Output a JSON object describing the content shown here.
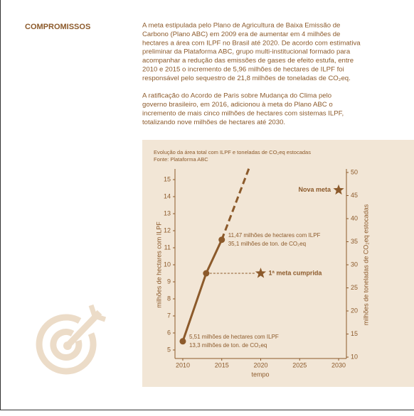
{
  "heading": "COMPROMISSOS",
  "paragraphs": [
    [
      "A meta estipulada pelo Plano de Agricultura de Baixa Emissão de",
      "Carbono (Plano ABC) em 2009 era de aumentar em 4 milhões de",
      "hectares a área com ILPF no Brasil até 2020. De acordo com estimativa",
      "preliminar da Plataforma ABC, grupo multi-institucional formado para",
      "acompanhar a redução das emissões de gases de efeito estufa, entre",
      "2010 e 2015 o incremento de 5,96 milhões de hectares de ILPF foi",
      "responsável pelo sequestro de 21,8 milhões de toneladas de CO₂eq."
    ],
    [
      "A ratificação do Acordo de Paris sobre Mudança do Clima pelo",
      "governo brasileiro, em 2016, adicionou à meta do Plano ABC o",
      "incremento de mais cinco milhões de hectares com sistemas ILPF,",
      "totalizando nove milhões de hectares até 2030."
    ]
  ],
  "chart_data": {
    "type": "line",
    "title": "Evolução da área total com ILPF e toneladas de CO₂eq estocadas",
    "subtitle": "Fonte: Plataforma ABC",
    "x_label": "tempo",
    "y_label": "milhões de hectares com ILPF",
    "y2_label": "milhões de toneladas de CO₂eq estocadas",
    "xlim": [
      2009,
      2031
    ],
    "xticks": [
      2010,
      2015,
      2020,
      2025,
      2030
    ],
    "ylim": [
      4.5,
      15.5
    ],
    "yticks": [
      5,
      6,
      7,
      8,
      9,
      10,
      11,
      12,
      13,
      14,
      15
    ],
    "y2lim": [
      9.7,
      50.3
    ],
    "y2ticks": [
      10,
      15,
      20,
      25,
      30,
      35,
      40,
      45,
      50
    ],
    "series": [
      {
        "color": "#8c5a2b",
        "x": [
          2010,
          2013,
          2015
        ],
        "values": [
          5.51,
          9.5,
          11.47
        ]
      },
      {
        "color": "#8c5a2b",
        "dashed": true,
        "x": [
          2015,
          2018.5
        ],
        "values": [
          11.47,
          15.67
        ]
      }
    ],
    "point_labels": [
      [
        "5,51 milhões de hectares com ILPF",
        "13,3 milhões de ton. de CO₂eq"
      ],
      [
        "11,47 milhões de hectares com ILPF",
        "35,1 milhões de ton. de CO₂eq"
      ]
    ],
    "annotations": [
      {
        "text": "1ª meta cumprida",
        "x": 2020,
        "y": 9.5
      },
      {
        "text": "Nova meta",
        "x": 2030,
        "y": 46.2,
        "axis": "y2"
      }
    ]
  }
}
